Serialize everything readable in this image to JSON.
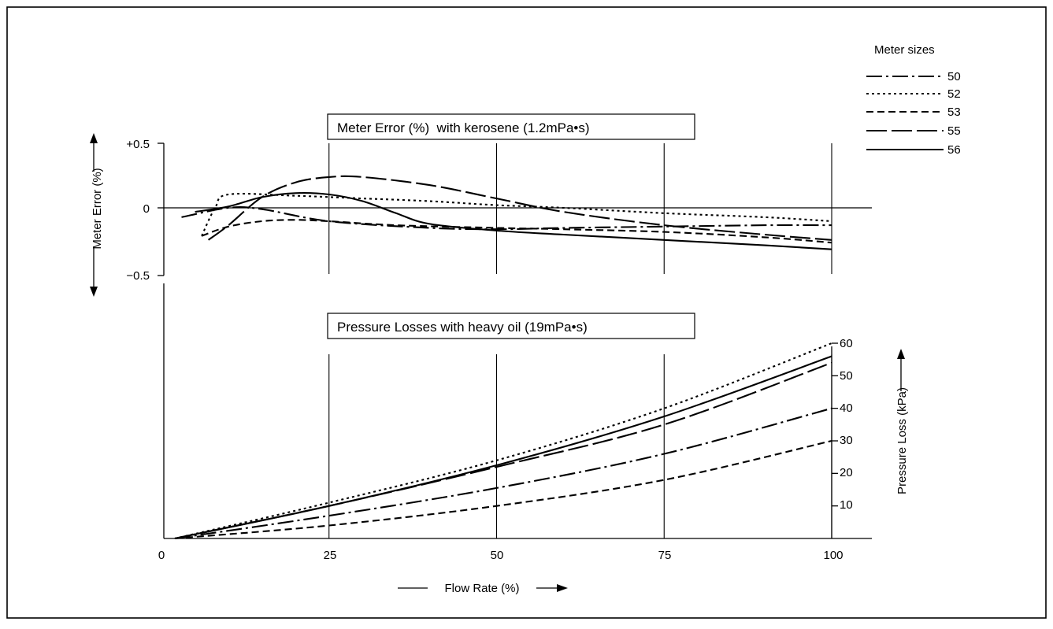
{
  "chart_data": [
    {
      "type": "line",
      "title": "Meter Error (%)  with kerosene (1.2mPa•s)",
      "xlabel": "Flow Rate (%)",
      "ylabel": "Meter Error (%)",
      "xlim": [
        0,
        100
      ],
      "ylim": [
        -0.5,
        0.5
      ],
      "x_ticks": [
        "0",
        "25",
        "50",
        "75",
        "100"
      ],
      "y_ticks": [
        {
          "value": 0.5,
          "label": "+0.5"
        },
        {
          "value": 0,
          "label": "0"
        },
        {
          "value": -0.5,
          "label": "−0.5"
        }
      ],
      "series": [
        {
          "name": "50",
          "x": [
            3,
            10,
            15,
            25,
            40,
            50,
            60,
            75,
            90,
            100
          ],
          "y": [
            -0.07,
            0.0,
            -0.01,
            -0.1,
            -0.15,
            -0.16,
            -0.15,
            -0.14,
            -0.13,
            -0.13
          ]
        },
        {
          "name": "52",
          "x": [
            6,
            8,
            10,
            20,
            30,
            40,
            50,
            60,
            75,
            90,
            100
          ],
          "y": [
            -0.21,
            0.0,
            0.1,
            0.09,
            0.07,
            0.05,
            0.02,
            0.0,
            -0.04,
            -0.07,
            -0.1
          ]
        },
        {
          "name": "53",
          "x": [
            6,
            10,
            15,
            20,
            25,
            35,
            50,
            60,
            75,
            90,
            100
          ],
          "y": [
            -0.21,
            -0.14,
            -0.1,
            -0.09,
            -0.1,
            -0.13,
            -0.15,
            -0.16,
            -0.18,
            -0.22,
            -0.26
          ]
        },
        {
          "name": "55",
          "x": [
            7,
            10,
            15,
            20,
            25,
            30,
            40,
            50,
            60,
            75,
            90,
            100
          ],
          "y": [
            -0.24,
            -0.13,
            0.08,
            0.19,
            0.23,
            0.23,
            0.17,
            0.07,
            -0.03,
            -0.13,
            -0.2,
            -0.24
          ]
        },
        {
          "name": "56",
          "x": [
            5,
            10,
            15,
            20,
            25,
            30,
            35,
            40,
            50,
            60,
            75,
            90,
            100
          ],
          "y": [
            -0.03,
            0.01,
            0.08,
            0.11,
            0.1,
            0.05,
            -0.04,
            -0.12,
            -0.17,
            -0.2,
            -0.24,
            -0.28,
            -0.31
          ]
        }
      ]
    },
    {
      "type": "line",
      "title": "Pressure Losses with heavy oil (19mPa•s)",
      "xlabel": "Flow Rate (%)",
      "ylabel": "Pressure Loss (kPa)",
      "xlim": [
        0,
        100
      ],
      "ylim": [
        0,
        60
      ],
      "y_ticks": [
        "10",
        "20",
        "30",
        "40",
        "50",
        "60"
      ],
      "series": [
        {
          "name": "50",
          "x": [
            2,
            25,
            50,
            75,
            100
          ],
          "y": [
            0,
            7,
            15.5,
            26,
            40
          ]
        },
        {
          "name": "52",
          "x": [
            2,
            25,
            50,
            75,
            100
          ],
          "y": [
            0,
            11,
            24,
            40,
            60
          ]
        },
        {
          "name": "53",
          "x": [
            2,
            25,
            50,
            75,
            100
          ],
          "y": [
            0,
            4,
            10,
            18,
            30
          ]
        },
        {
          "name": "55",
          "x": [
            2,
            25,
            50,
            75,
            100
          ],
          "y": [
            0,
            10,
            22,
            35,
            54
          ]
        },
        {
          "name": "56",
          "x": [
            2,
            25,
            50,
            75,
            100
          ],
          "y": [
            0,
            10,
            22.5,
            37.5,
            56
          ]
        }
      ]
    }
  ],
  "legend": {
    "title": "Meter sizes",
    "entries": [
      {
        "name": "50",
        "dash": "20 5 3 5"
      },
      {
        "name": "52",
        "dash": "3 4"
      },
      {
        "name": "53",
        "dash": "9 5"
      },
      {
        "name": "55",
        "dash": "26 6"
      },
      {
        "name": "56",
        "dash": ""
      }
    ],
    "position": "top-right"
  }
}
